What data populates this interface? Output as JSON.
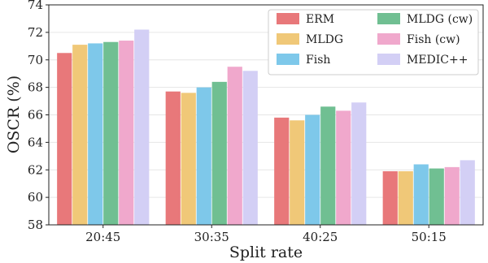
{
  "chart_data": {
    "type": "bar",
    "categories": [
      "20:45",
      "30:35",
      "40:25",
      "50:15"
    ],
    "xlabel": "Split rate",
    "ylabel": "OSCR (%)",
    "ylim": [
      58,
      74
    ],
    "yticks": [
      58,
      60,
      62,
      64,
      66,
      68,
      70,
      72,
      74
    ],
    "grid": "horizontal",
    "legend_position": "top-right",
    "series": [
      {
        "name": "ERM",
        "color": "#e8787a",
        "values": [
          70.5,
          67.7,
          65.8,
          61.9
        ]
      },
      {
        "name": "MLDG",
        "color": "#f0c878",
        "values": [
          71.1,
          67.6,
          65.6,
          61.9
        ]
      },
      {
        "name": "Fish",
        "color": "#7ec8ea",
        "values": [
          71.2,
          68.0,
          66.0,
          62.4
        ]
      },
      {
        "name": "MLDG (cw)",
        "color": "#70bf92",
        "values": [
          71.3,
          68.4,
          66.6,
          62.1
        ]
      },
      {
        "name": "Fish (cw)",
        "color": "#f0a8cc",
        "values": [
          71.4,
          69.5,
          66.3,
          62.2
        ]
      },
      {
        "name": "MEDIC++",
        "color": "#d3cff5",
        "values": [
          72.2,
          69.2,
          66.9,
          62.7
        ]
      }
    ]
  }
}
